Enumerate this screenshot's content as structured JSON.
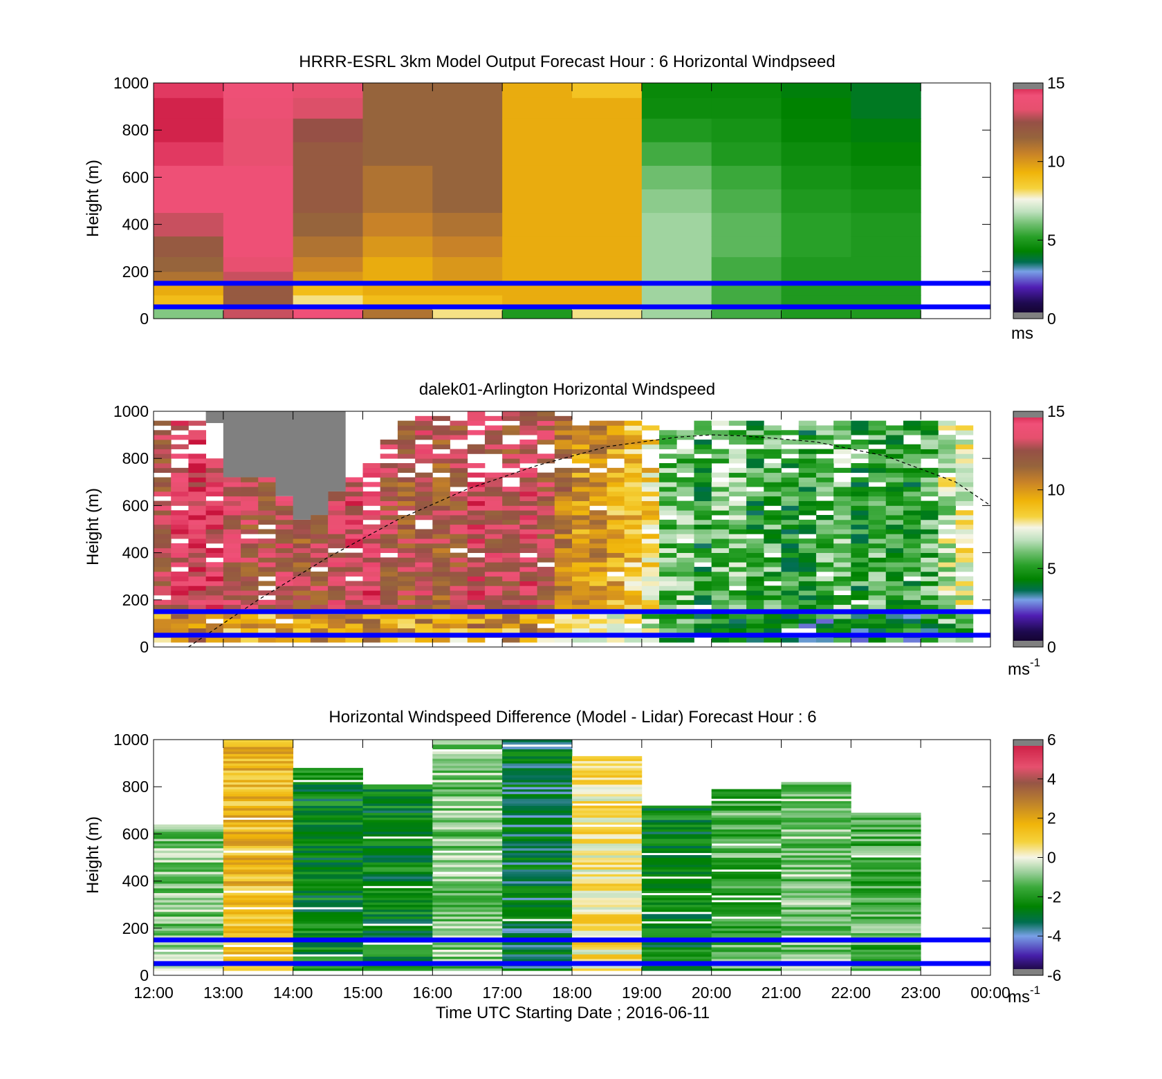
{
  "colors": {
    "reference_lines": "#0000ff",
    "sun_curve": "#000000",
    "no_data": "#ffffff"
  },
  "x_tick_labels": [
    "12:00",
    "13:00",
    "14:00",
    "15:00",
    "16:00",
    "17:00",
    "18:00",
    "19:00",
    "20:00",
    "21:00",
    "22:00",
    "23:00",
    "00:00"
  ],
  "x_label": "Time UTC  Starting Date ; 2016-06-11",
  "chart_data": [
    {
      "type": "heatmap",
      "title": "HRRR-ESRL 3km Model Output   Forecast Hour : 6 Horizontal Windpseed",
      "ylabel": "Height (m)",
      "ylim": [
        0,
        1000
      ],
      "yticks": [
        "0",
        "200",
        "400",
        "600",
        "800",
        "1000"
      ],
      "colorbar": {
        "ticks": [
          "0",
          "5",
          "10",
          "15"
        ],
        "range": [
          0,
          15
        ],
        "unit": "ms"
      },
      "reference_lines_m": [
        150,
        50
      ],
      "x_hours": [
        "12:00",
        "13:00",
        "14:00",
        "15:00",
        "16:00",
        "17:00",
        "18:00",
        "19:00",
        "20:00",
        "21:00",
        "22:00"
      ],
      "heights_m": [
        25,
        75,
        125,
        175,
        225,
        300,
        400,
        500,
        600,
        700,
        800,
        900,
        975
      ],
      "values": [
        [
          6.2,
          13.0,
          14.2,
          11.0,
          8.0,
          5.0,
          8.0,
          6.5,
          5.5,
          5.0,
          5.0
        ],
        [
          9.0,
          12.0,
          8.0,
          9.0,
          9.0,
          9.5,
          9.5,
          6.5,
          5.5,
          5.0,
          5.0
        ],
        [
          9.5,
          12.0,
          9.0,
          9.5,
          9.5,
          9.5,
          9.5,
          6.5,
          5.5,
          5.0,
          5.0
        ],
        [
          11.0,
          13.0,
          10.0,
          9.5,
          10.0,
          9.5,
          9.5,
          6.5,
          5.5,
          5.0,
          5.0
        ],
        [
          11.5,
          13.5,
          10.5,
          9.5,
          10.0,
          9.5,
          9.5,
          6.5,
          5.5,
          5.0,
          5.0
        ],
        [
          12.0,
          14.0,
          11.0,
          10.0,
          10.5,
          9.5,
          9.5,
          6.5,
          5.8,
          5.2,
          5.0
        ],
        [
          13.0,
          14.0,
          11.5,
          10.5,
          11.0,
          9.5,
          9.5,
          6.5,
          5.8,
          5.2,
          5.0
        ],
        [
          14.0,
          14.0,
          12.0,
          11.0,
          11.5,
          9.5,
          9.5,
          6.3,
          5.6,
          5.0,
          4.8
        ],
        [
          14.0,
          14.0,
          12.0,
          11.0,
          11.5,
          9.5,
          9.5,
          6.0,
          5.4,
          4.8,
          4.6
        ],
        [
          14.5,
          13.5,
          12.0,
          11.5,
          11.5,
          9.5,
          9.5,
          5.5,
          5.0,
          4.6,
          4.4
        ],
        [
          14.8,
          13.5,
          12.5,
          11.5,
          11.5,
          9.5,
          9.5,
          5.0,
          4.8,
          4.4,
          4.2
        ],
        [
          14.8,
          13.8,
          13.2,
          11.5,
          11.5,
          9.5,
          9.5,
          4.6,
          4.6,
          4.3,
          4.0
        ],
        [
          14.5,
          14.0,
          13.5,
          11.5,
          11.5,
          9.5,
          8.8,
          4.5,
          4.5,
          4.2,
          4.0
        ]
      ]
    },
    {
      "type": "heatmap",
      "title": "dalek01-Arlington  Horizontal Windspeed",
      "ylabel": "Height (m)",
      "ylim": [
        0,
        1000
      ],
      "yticks": [
        "0",
        "200",
        "400",
        "600",
        "800",
        "1000"
      ],
      "colorbar": {
        "ticks": [
          "0",
          "5",
          "10",
          "15"
        ],
        "range": [
          0,
          15
        ],
        "unit": "ms",
        "unit_sup": "-1"
      },
      "reference_lines_m": [
        150,
        50
      ],
      "x_hours": [
        12.0,
        12.25,
        12.5,
        12.75,
        13.0,
        13.25,
        13.5,
        13.75,
        14.0,
        14.25,
        14.5,
        14.75,
        15.0,
        15.25,
        15.5,
        15.75,
        16.0,
        16.25,
        16.5,
        16.75,
        17.0,
        17.25,
        17.5,
        17.75,
        18.0,
        18.25,
        18.5,
        18.75,
        19.0,
        19.25,
        19.5,
        19.75,
        20.0,
        20.25,
        20.5,
        20.75,
        21.0,
        21.25,
        21.5,
        21.75,
        22.0,
        22.25,
        22.5,
        22.75,
        23.0,
        23.25,
        23.5
      ],
      "profile_mean_ms": [
        12.5,
        13.5,
        14.0,
        14.0,
        13.0,
        12.5,
        12.5,
        13.0,
        12.0,
        12.5,
        13.0,
        13.5,
        14.0,
        12.5,
        12.0,
        13.0,
        12.0,
        12.5,
        13.5,
        13.0,
        12.5,
        13.5,
        12.5,
        11.0,
        10.0,
        10.0,
        9.5,
        9.0,
        8.5,
        6.0,
        6.0,
        5.0,
        6.0,
        6.0,
        5.0,
        5.5,
        5.0,
        5.0,
        5.5,
        6.0,
        5.0,
        5.5,
        5.0,
        5.0,
        5.5,
        7.0,
        7.5
      ],
      "profile_top_m": [
        950,
        950,
        950,
        950,
        720,
        720,
        720,
        640,
        540,
        560,
        660,
        720,
        780,
        880,
        950,
        980,
        1000,
        1000,
        1000,
        980,
        1000,
        1000,
        1000,
        980,
        960,
        960,
        960,
        960,
        960,
        960,
        960,
        960,
        960,
        960,
        960,
        960,
        960,
        960,
        960,
        960,
        960,
        960,
        960,
        960,
        960,
        960,
        960
      ],
      "missing_region_m": {
        "hours": [
          12.75,
          14.75
        ],
        "top": 1000,
        "bottom_min": 540
      },
      "sun_curve": {
        "x_hours": [
          12.5,
          13.5,
          14.5,
          15.5,
          16.5,
          17.5,
          18.5,
          19.5,
          20.0,
          20.5,
          21.5,
          22.5,
          23.5,
          24.0
        ],
        "y_m": [
          0,
          200,
          380,
          540,
          670,
          770,
          850,
          890,
          900,
          895,
          870,
          810,
          700,
          600
        ]
      }
    },
    {
      "type": "heatmap",
      "title": "Horizontal Windspeed Difference (Model - Lidar) Forecast Hour : 6",
      "ylabel": "Height (m)",
      "ylim": [
        0,
        1000
      ],
      "yticks": [
        "0",
        "200",
        "400",
        "600",
        "800",
        "1000"
      ],
      "colorbar": {
        "ticks": [
          "-6",
          "-4",
          "-2",
          "0",
          "2",
          "4",
          "6"
        ],
        "range": [
          -6,
          6
        ],
        "unit": "ms",
        "unit_sup": "-1"
      },
      "reference_lines_m": [
        150,
        50
      ],
      "x_hours": [
        "12:00",
        "13:00",
        "14:00",
        "15:00",
        "16:00",
        "17:00",
        "18:00",
        "19:00",
        "20:00",
        "21:00",
        "22:00"
      ],
      "column_top_m": [
        640,
        1000,
        880,
        820,
        1000,
        1000,
        930,
        720,
        790,
        820,
        690
      ],
      "column_mean_diff": [
        -1.0,
        1.5,
        -2.5,
        -2.5,
        -1.0,
        -3.0,
        0.5,
        -2.5,
        -1.5,
        -1.0,
        -1.5
      ]
    }
  ]
}
